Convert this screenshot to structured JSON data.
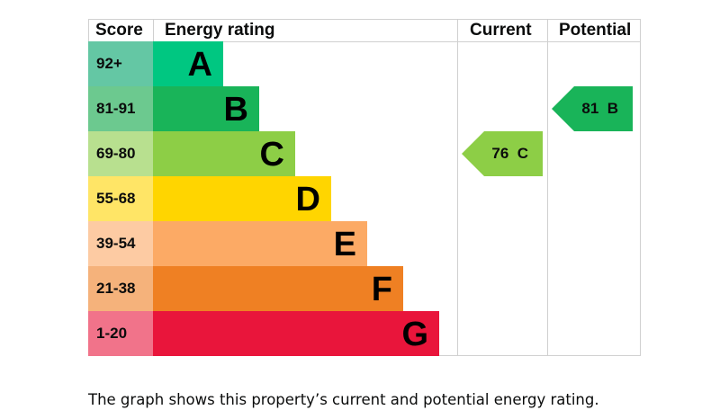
{
  "chart_data": {
    "type": "table",
    "headers": {
      "score": "Score",
      "rating": "Energy rating",
      "current": "Current",
      "potential": "Potential"
    },
    "bands": [
      {
        "score": "92+",
        "letter": "A",
        "color": "#00c781",
        "tint": "#64c7a4"
      },
      {
        "score": "81-91",
        "letter": "B",
        "color": "#19b459",
        "tint": "#6cc98f"
      },
      {
        "score": "69-80",
        "letter": "C",
        "color": "#8dce46",
        "tint": "#b8e08f"
      },
      {
        "score": "55-68",
        "letter": "D",
        "color": "#ffd500",
        "tint": "#ffe566"
      },
      {
        "score": "39-54",
        "letter": "E",
        "color": "#fcaa65",
        "tint": "#fdcba3"
      },
      {
        "score": "21-38",
        "letter": "F",
        "color": "#ef8023",
        "tint": "#f5b27b"
      },
      {
        "score": "1-20",
        "letter": "G",
        "color": "#e9153b",
        "tint": "#f1738a"
      }
    ],
    "current": {
      "value": 76,
      "letter": "C",
      "label": "76  C",
      "band_index": 2
    },
    "potential": {
      "value": 81,
      "letter": "B",
      "label": "81  B",
      "band_index": 1
    }
  },
  "caption": "The graph shows this property’s current and potential energy rating."
}
